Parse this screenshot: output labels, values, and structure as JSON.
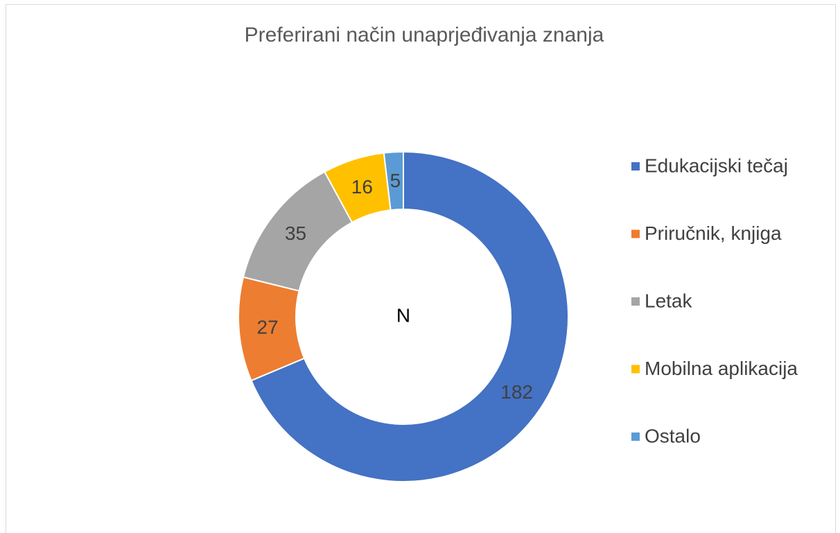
{
  "chart_data": {
    "type": "donut",
    "title": "Preferirani način unaprjeđivanja znanja",
    "center_label": "N",
    "categories": [
      "Edukacijski tečaj",
      "Priručnik, knjiga",
      "Letak",
      "Mobilna aplikacija",
      "Ostalo"
    ],
    "values": [
      182,
      27,
      35,
      16,
      5
    ],
    "colors": [
      "#4472c4",
      "#ed7d31",
      "#a5a5a5",
      "#ffc000",
      "#5b9bd5"
    ],
    "legend": "right"
  }
}
